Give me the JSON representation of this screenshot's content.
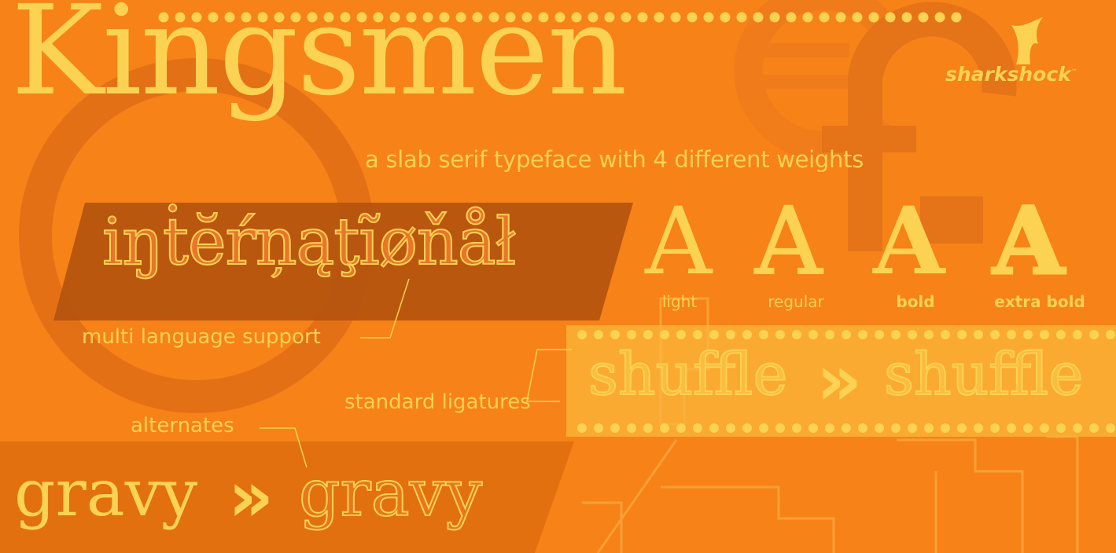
{
  "title": "Kingsmen",
  "subtitle": "a slab serif typeface with 4 different weights",
  "international": {
    "word": "iŋṫĕŕņąţĩøňåł",
    "label": "multi language support"
  },
  "weights": [
    {
      "glyph": "A",
      "label": "light"
    },
    {
      "glyph": "A",
      "label": "regular"
    },
    {
      "glyph": "A",
      "label": "bold"
    },
    {
      "glyph": "A",
      "label": "extra bold"
    }
  ],
  "ligatures": {
    "label": "standard ligatures",
    "before": "shuffle",
    "after": "shuffle",
    "arrow": "»"
  },
  "alternates": {
    "label": "alternates",
    "before": "gravy",
    "after": "gravy",
    "arrow": "»"
  },
  "logo": {
    "text": "sharkshock",
    "tm": "™"
  },
  "colors": {
    "background": "#f68218",
    "accent_yellow": "#fcd253",
    "dark_band": "#b4540f",
    "light_band": "#fbb236"
  },
  "icons": [
    "euro-sign-icon",
    "pound-sign-icon",
    "shark-fin-logo-icon"
  ]
}
